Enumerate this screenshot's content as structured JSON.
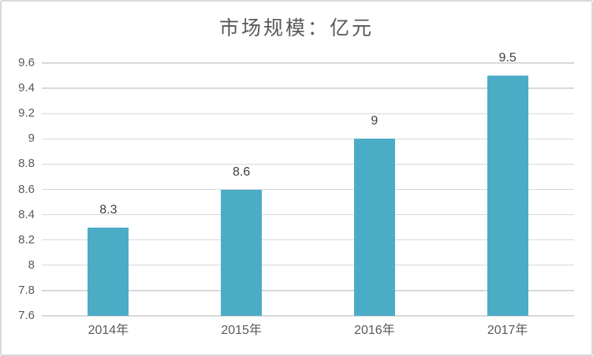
{
  "chart_data": {
    "type": "bar",
    "title": "市场规模：亿元",
    "categories": [
      "2014年",
      "2015年",
      "2016年",
      "2017年"
    ],
    "values": [
      8.3,
      8.6,
      9,
      9.5
    ],
    "data_labels": [
      "8.3",
      "8.6",
      "9",
      "9.5"
    ],
    "y_axis": {
      "min": 7.6,
      "max": 9.6,
      "tick_step": 0.2,
      "tick_labels": [
        "7.6",
        "7.8",
        "8",
        "8.2",
        "8.4",
        "8.6",
        "8.8",
        "9",
        "9.2",
        "9.4",
        "9.6"
      ]
    },
    "xlabel": "",
    "ylabel": "",
    "grid": true,
    "legend": false,
    "colors": {
      "bar": "#4BACC6",
      "gridline": "#D9D9D9",
      "axis_line": "#D9D9D9",
      "axis_text": "#595959",
      "data_label": "#3F3F3F",
      "title_text": "#595959",
      "frame_border": "#D9D9D9",
      "background": "#FFFFFF"
    }
  }
}
